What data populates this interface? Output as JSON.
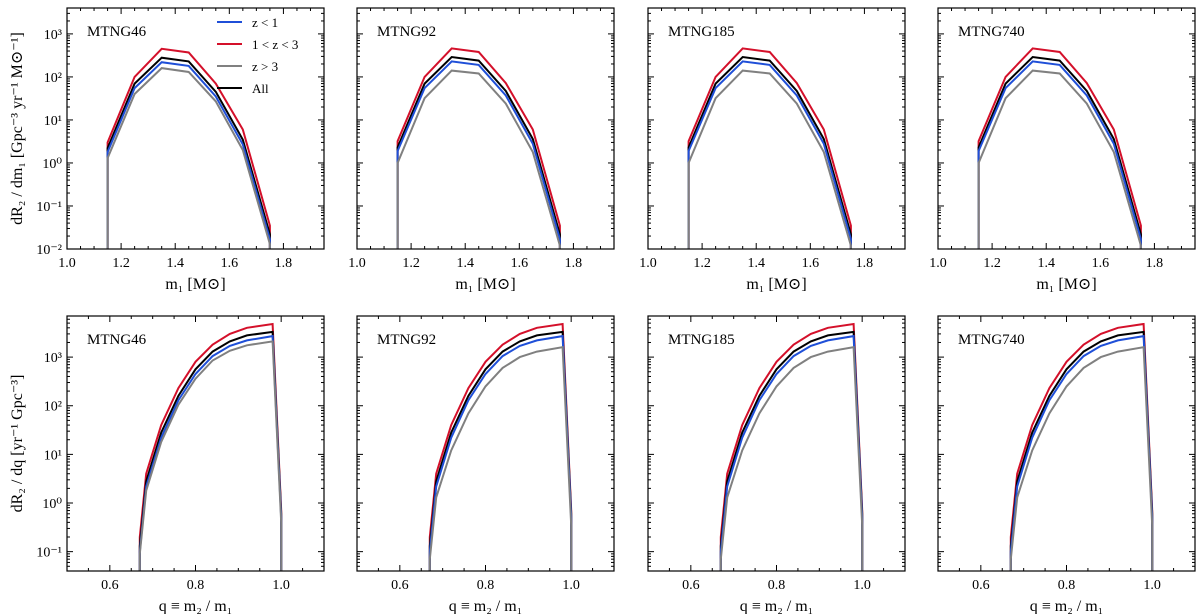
{
  "series_meta": [
    {
      "key": "z_lt_1",
      "name": "z < 1",
      "color": "#1f4fd8"
    },
    {
      "key": "z_1_3",
      "name": "1 < z < 3",
      "color": "#d4102a"
    },
    {
      "key": "z_gt_3",
      "name": "z > 3",
      "color": "#808080"
    },
    {
      "key": "all",
      "name": "All",
      "color": "#000000"
    }
  ],
  "chart_data": [
    {
      "type": "line",
      "row": "top",
      "title": "MTNG46",
      "xlabel": "m₁ [M⊙]",
      "ylabel": "dR₂ / dm₁ [Gpc⁻³ yr⁻¹ M⊙⁻¹]",
      "xlim": [
        1.0,
        1.95
      ],
      "ylim": [
        0.01,
        4000
      ],
      "yscale": "log",
      "xticks": [
        1.0,
        1.2,
        1.4,
        1.6,
        1.8
      ],
      "xtick_labels": [
        "1.0",
        "1.2",
        "1.4",
        "1.6",
        "1.8"
      ],
      "yticks": [
        0.01,
        0.1,
        1,
        10,
        100,
        1000
      ],
      "ytick_labels": [
        "10⁻²",
        "10⁻¹",
        "10⁰",
        "10¹",
        "10²",
        "10³"
      ],
      "legend": true,
      "x": [
        1.15,
        1.15,
        1.25,
        1.35,
        1.45,
        1.55,
        1.65,
        1.75,
        1.75
      ],
      "series": [
        {
          "key": "z_1_3",
          "values": [
            0.01,
            3,
            100,
            450,
            370,
            70,
            6,
            0.035,
            0.01
          ]
        },
        {
          "key": "all",
          "values": [
            0.01,
            2.2,
            70,
            280,
            230,
            45,
            3.5,
            0.022,
            0.01
          ]
        },
        {
          "key": "z_lt_1",
          "values": [
            0.01,
            1.8,
            55,
            220,
            180,
            35,
            2.7,
            0.017,
            0.01
          ]
        },
        {
          "key": "z_gt_3",
          "values": [
            0.01,
            1.3,
            40,
            160,
            130,
            27,
            2.0,
            0.013,
            0.01
          ]
        }
      ]
    },
    {
      "type": "line",
      "row": "top",
      "title": "MTNG92",
      "xlabel": "m₁ [M⊙]",
      "xlim": [
        1.0,
        1.95
      ],
      "ylim": [
        0.01,
        4000
      ],
      "yscale": "log",
      "xticks": [
        1.0,
        1.2,
        1.4,
        1.6,
        1.8
      ],
      "xtick_labels": [
        "1.0",
        "1.2",
        "1.4",
        "1.6",
        "1.8"
      ],
      "x": [
        1.15,
        1.15,
        1.25,
        1.35,
        1.45,
        1.55,
        1.65,
        1.75,
        1.75
      ],
      "series": [
        {
          "key": "z_1_3",
          "values": [
            0.01,
            3.2,
            100,
            460,
            380,
            72,
            6,
            0.035,
            0.01
          ]
        },
        {
          "key": "all",
          "values": [
            0.01,
            2.3,
            70,
            290,
            240,
            47,
            3.6,
            0.022,
            0.01
          ]
        },
        {
          "key": "z_lt_1",
          "values": [
            0.01,
            1.9,
            55,
            230,
            190,
            37,
            2.8,
            0.017,
            0.01
          ]
        },
        {
          "key": "z_gt_3",
          "values": [
            0.01,
            1.0,
            32,
            140,
            120,
            24,
            1.8,
            0.012,
            0.01
          ]
        }
      ]
    },
    {
      "type": "line",
      "row": "top",
      "title": "MTNG185",
      "xlabel": "m₁ [M⊙]",
      "xlim": [
        1.0,
        1.95
      ],
      "ylim": [
        0.01,
        4000
      ],
      "yscale": "log",
      "xticks": [
        1.0,
        1.2,
        1.4,
        1.6,
        1.8
      ],
      "xtick_labels": [
        "1.0",
        "1.2",
        "1.4",
        "1.6",
        "1.8"
      ],
      "x": [
        1.15,
        1.15,
        1.25,
        1.35,
        1.45,
        1.55,
        1.65,
        1.75,
        1.75
      ],
      "series": [
        {
          "key": "z_1_3",
          "values": [
            0.01,
            3.2,
            100,
            460,
            380,
            72,
            6,
            0.035,
            0.01
          ]
        },
        {
          "key": "all",
          "values": [
            0.01,
            2.3,
            70,
            290,
            240,
            47,
            3.6,
            0.022,
            0.01
          ]
        },
        {
          "key": "z_lt_1",
          "values": [
            0.01,
            1.9,
            55,
            230,
            190,
            37,
            2.8,
            0.017,
            0.01
          ]
        },
        {
          "key": "z_gt_3",
          "values": [
            0.01,
            1.0,
            32,
            140,
            120,
            24,
            1.8,
            0.012,
            0.01
          ]
        }
      ]
    },
    {
      "type": "line",
      "row": "top",
      "title": "MTNG740",
      "xlabel": "m₁ [M⊙]",
      "xlim": [
        1.0,
        1.95
      ],
      "ylim": [
        0.01,
        4000
      ],
      "yscale": "log",
      "xticks": [
        1.0,
        1.2,
        1.4,
        1.6,
        1.8
      ],
      "xtick_labels": [
        "1.0",
        "1.2",
        "1.4",
        "1.6",
        "1.8"
      ],
      "x": [
        1.15,
        1.15,
        1.25,
        1.35,
        1.45,
        1.55,
        1.65,
        1.75,
        1.75
      ],
      "series": [
        {
          "key": "z_1_3",
          "values": [
            0.01,
            3.2,
            100,
            460,
            380,
            72,
            6,
            0.035,
            0.01
          ]
        },
        {
          "key": "all",
          "values": [
            0.01,
            2.3,
            70,
            290,
            240,
            47,
            3.6,
            0.022,
            0.01
          ]
        },
        {
          "key": "z_lt_1",
          "values": [
            0.01,
            1.9,
            55,
            230,
            190,
            37,
            2.8,
            0.017,
            0.01
          ]
        },
        {
          "key": "z_gt_3",
          "values": [
            0.01,
            1.0,
            32,
            140,
            120,
            24,
            1.8,
            0.012,
            0.01
          ]
        }
      ]
    },
    {
      "type": "line",
      "row": "bottom",
      "title": "MTNG46",
      "xlabel": "q ≡ m₂ / m₁",
      "ylabel": "dR₂ / dq [yr⁻¹ Gpc⁻³]",
      "xlim": [
        0.5,
        1.1
      ],
      "ylim": [
        0.04,
        7000
      ],
      "yscale": "log",
      "xticks": [
        0.6,
        0.8,
        1.0
      ],
      "xtick_labels": [
        "0.6",
        "0.8",
        "1.0"
      ],
      "yticks": [
        0.1,
        1,
        10,
        100,
        1000
      ],
      "ytick_labels": [
        "10⁻¹",
        "10⁰",
        "10¹",
        "10²",
        "10³"
      ],
      "x": [
        0.67,
        0.67,
        0.685,
        0.72,
        0.76,
        0.8,
        0.84,
        0.88,
        0.92,
        0.98,
        1.0,
        1.0
      ],
      "series": [
        {
          "key": "z_1_3",
          "values": [
            0.04,
            0.2,
            4,
            40,
            230,
            800,
            1800,
            3000,
            4000,
            4800,
            0.7,
            0.04
          ]
        },
        {
          "key": "all",
          "values": [
            0.04,
            0.13,
            2.8,
            28,
            160,
            560,
            1300,
            2100,
            2800,
            3300,
            0.6,
            0.04
          ]
        },
        {
          "key": "z_lt_1",
          "values": [
            0.04,
            0.1,
            2.2,
            22,
            130,
            450,
            1050,
            1700,
            2200,
            2700,
            0.5,
            0.04
          ]
        },
        {
          "key": "z_gt_3",
          "values": [
            0.04,
            0.09,
            1.8,
            18,
            105,
            360,
            850,
            1350,
            1750,
            2100,
            0.4,
            0.04
          ]
        }
      ]
    },
    {
      "type": "line",
      "row": "bottom",
      "title": "MTNG92",
      "xlabel": "q ≡ m₂ / m₁",
      "xlim": [
        0.5,
        1.1
      ],
      "ylim": [
        0.04,
        7000
      ],
      "yscale": "log",
      "xticks": [
        0.6,
        0.8,
        1.0
      ],
      "xtick_labels": [
        "0.6",
        "0.8",
        "1.0"
      ],
      "x": [
        0.67,
        0.67,
        0.685,
        0.72,
        0.76,
        0.8,
        0.84,
        0.88,
        0.92,
        0.98,
        1.0,
        1.0
      ],
      "series": [
        {
          "key": "z_1_3",
          "values": [
            0.04,
            0.2,
            4,
            40,
            230,
            800,
            1800,
            3000,
            4000,
            4800,
            0.7,
            0.04
          ]
        },
        {
          "key": "all",
          "values": [
            0.04,
            0.13,
            2.8,
            28,
            160,
            560,
            1300,
            2100,
            2800,
            3300,
            0.6,
            0.04
          ]
        },
        {
          "key": "z_lt_1",
          "values": [
            0.04,
            0.1,
            2.2,
            22,
            130,
            450,
            1050,
            1700,
            2200,
            2700,
            0.5,
            0.04
          ]
        },
        {
          "key": "z_gt_3",
          "values": [
            0.04,
            0.07,
            1.3,
            12,
            70,
            250,
            600,
            1000,
            1300,
            1600,
            0.35,
            0.04
          ]
        }
      ]
    },
    {
      "type": "line",
      "row": "bottom",
      "title": "MTNG185",
      "xlabel": "q ≡ m₂ / m₁",
      "xlim": [
        0.5,
        1.1
      ],
      "ylim": [
        0.04,
        7000
      ],
      "yscale": "log",
      "xticks": [
        0.6,
        0.8,
        1.0
      ],
      "xtick_labels": [
        "0.6",
        "0.8",
        "1.0"
      ],
      "x": [
        0.67,
        0.67,
        0.685,
        0.72,
        0.76,
        0.8,
        0.84,
        0.88,
        0.92,
        0.98,
        1.0,
        1.0
      ],
      "series": [
        {
          "key": "z_1_3",
          "values": [
            0.04,
            0.2,
            4,
            40,
            230,
            800,
            1800,
            3000,
            4000,
            4800,
            0.7,
            0.04
          ]
        },
        {
          "key": "all",
          "values": [
            0.04,
            0.13,
            2.8,
            28,
            160,
            560,
            1300,
            2100,
            2800,
            3300,
            0.6,
            0.04
          ]
        },
        {
          "key": "z_lt_1",
          "values": [
            0.04,
            0.1,
            2.2,
            22,
            130,
            450,
            1050,
            1700,
            2200,
            2700,
            0.5,
            0.04
          ]
        },
        {
          "key": "z_gt_3",
          "values": [
            0.04,
            0.07,
            1.3,
            12,
            70,
            250,
            600,
            1000,
            1300,
            1600,
            0.35,
            0.04
          ]
        }
      ]
    },
    {
      "type": "line",
      "row": "bottom",
      "title": "MTNG740",
      "xlabel": "q ≡ m₂ / m₁",
      "xlim": [
        0.5,
        1.1
      ],
      "ylim": [
        0.04,
        7000
      ],
      "yscale": "log",
      "xticks": [
        0.6,
        0.8,
        1.0
      ],
      "xtick_labels": [
        "0.6",
        "0.8",
        "1.0"
      ],
      "x": [
        0.67,
        0.67,
        0.685,
        0.72,
        0.76,
        0.8,
        0.84,
        0.88,
        0.92,
        0.98,
        1.0,
        1.0
      ],
      "series": [
        {
          "key": "z_1_3",
          "values": [
            0.04,
            0.2,
            4,
            40,
            230,
            800,
            1800,
            3000,
            4000,
            4800,
            0.7,
            0.04
          ]
        },
        {
          "key": "all",
          "values": [
            0.04,
            0.13,
            2.8,
            28,
            160,
            560,
            1300,
            2100,
            2800,
            3300,
            0.6,
            0.04
          ]
        },
        {
          "key": "z_lt_1",
          "values": [
            0.04,
            0.1,
            2.2,
            22,
            130,
            450,
            1050,
            1700,
            2200,
            2700,
            0.5,
            0.04
          ]
        },
        {
          "key": "z_gt_3",
          "values": [
            0.04,
            0.07,
            1.3,
            12,
            70,
            250,
            600,
            1000,
            1300,
            1600,
            0.35,
            0.04
          ]
        }
      ]
    }
  ]
}
